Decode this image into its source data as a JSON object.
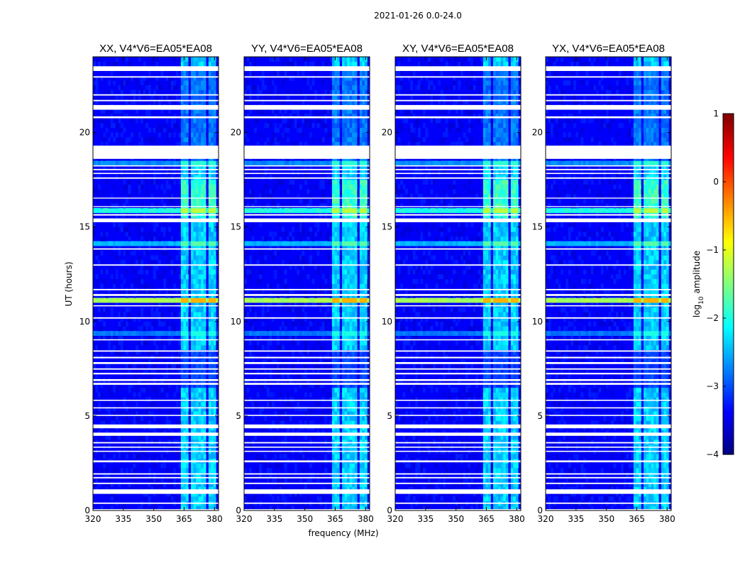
{
  "chart_data": {
    "type": "heatmap",
    "suptitle": "2021-01-26 0.0-24.0",
    "xlabel": "frequency (MHz)",
    "ylabel": "UT (hours)",
    "xlim": [
      320,
      382
    ],
    "ylim": [
      0,
      24
    ],
    "xticks": [
      320,
      335,
      350,
      365,
      380
    ],
    "yticks": [
      0,
      5,
      10,
      15,
      20
    ],
    "panels": [
      {
        "title": "XX, V4*V6=EA05*EA08",
        "rfi_start_mhz": 363
      },
      {
        "title": "YY, V4*V6=EA05*EA08",
        "rfi_start_mhz": 363
      },
      {
        "title": "XY, V4*V6=EA05*EA08",
        "rfi_start_mhz": 363
      },
      {
        "title": "YX, V4*V6=EA05*EA08",
        "rfi_start_mhz": 363
      }
    ],
    "rfi_channels_mhz": [
      [
        363,
        367
      ],
      [
        368,
        371.5
      ],
      [
        372.5,
        376
      ],
      [
        377,
        381
      ]
    ],
    "flagged_hours": [
      [
        0.0,
        0.07
      ],
      [
        0.35,
        0.42
      ],
      [
        0.88,
        1.12
      ],
      [
        1.4,
        1.47
      ],
      [
        1.7,
        1.77
      ],
      [
        1.9,
        1.97
      ],
      [
        2.55,
        2.65
      ],
      [
        3.1,
        3.16
      ],
      [
        3.32,
        3.38
      ],
      [
        3.55,
        3.62
      ],
      [
        3.95,
        4.12
      ],
      [
        4.35,
        4.55
      ],
      [
        5.0,
        5.06
      ],
      [
        5.4,
        5.46
      ],
      [
        5.8,
        5.86
      ],
      [
        6.65,
        6.75
      ],
      [
        6.85,
        6.95
      ],
      [
        7.2,
        7.28
      ],
      [
        7.45,
        7.52
      ],
      [
        7.75,
        7.85
      ],
      [
        8.05,
        8.13
      ],
      [
        8.4,
        8.47
      ],
      [
        9.0,
        9.06
      ],
      [
        10.15,
        10.22
      ],
      [
        10.8,
        10.86
      ],
      [
        11.35,
        11.45
      ],
      [
        11.65,
        11.72
      ],
      [
        12.95,
        13.02
      ],
      [
        13.8,
        13.87
      ],
      [
        15.25,
        15.45
      ],
      [
        15.6,
        15.68
      ],
      [
        16.05,
        16.1
      ],
      [
        16.5,
        16.55
      ],
      [
        17.55,
        17.62
      ],
      [
        17.8,
        17.86
      ],
      [
        18.0,
        18.07
      ],
      [
        18.2,
        18.26
      ],
      [
        18.6,
        19.3
      ],
      [
        20.75,
        20.85
      ],
      [
        21.2,
        21.45
      ],
      [
        21.65,
        21.72
      ],
      [
        21.95,
        22.02
      ],
      [
        22.9,
        22.97
      ],
      [
        23.25,
        23.5
      ]
    ],
    "bright_bands_hours": [
      {
        "range": [
          11.0,
          11.3
        ],
        "level": -0.8
      },
      {
        "range": [
          15.75,
          16.05
        ],
        "level": -1.5
      },
      {
        "range": [
          3.7,
          3.85
        ],
        "level": -1.8
      },
      {
        "range": [
          0.05,
          0.12
        ],
        "level": -2.0
      },
      {
        "range": [
          9.3,
          9.5
        ],
        "level": -2.3
      },
      {
        "range": [
          18.35,
          18.55
        ],
        "level": -2.2
      },
      {
        "range": [
          13.9,
          14.3
        ],
        "level": -2.0
      }
    ],
    "colorbar": {
      "label": "log10 amplitude",
      "label_prefix": "log",
      "label_sub": "10",
      "label_suffix": " amplitude",
      "range": [
        -4,
        1
      ],
      "ticks": [
        -4,
        -3,
        -2,
        -1,
        0,
        1
      ],
      "tick_labels": [
        "−4",
        "−3",
        "−2",
        "−1",
        "0",
        "1"
      ],
      "colormap": "jet"
    }
  }
}
